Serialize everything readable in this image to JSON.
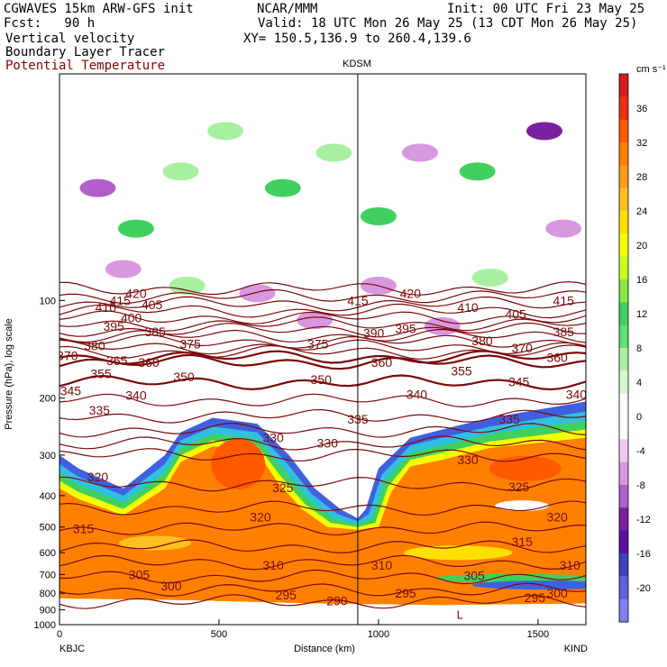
{
  "header": {
    "left1": "CGWAVES 15km ARW-GFS init",
    "center1": "NCAR/MMM",
    "right1": "Init: 00 UTC Fri 23 May 25",
    "left2": "Fcst:   90 h",
    "center2": "Valid: 18 UTC Mon 26 May 25 (13 CDT Mon 26 May 25)",
    "left3": "Vertical velocity",
    "center3": "XY= 150.5,136.9 to 260.4,139.6",
    "left4": "Boundary Layer Tracer",
    "left5": "Potential Temperature"
  },
  "colors": {
    "contour": "#7a0a0a",
    "marker_line": "#000000",
    "header_red": "#8b0000"
  },
  "chart_data": {
    "type": "heatmap",
    "xlabel": "Distance (km)",
    "ylabel": "Pressure (hPa), log scale",
    "x_ticks": [
      0,
      500,
      1000,
      1500
    ],
    "y_ticks": [
      100,
      200,
      300,
      400,
      500,
      600,
      700,
      800,
      900,
      1000
    ],
    "y_scale": "log",
    "xlim": [
      0,
      1650
    ],
    "ylim": [
      1000,
      20
    ],
    "x_endpoints": {
      "left": "KBJC",
      "right": "KIND"
    },
    "marker": {
      "label": "KDSM",
      "x": 935
    },
    "colorbar": {
      "units": "cm s⁻¹",
      "labels": [
        36,
        32,
        28,
        24,
        20,
        16,
        12,
        8,
        4,
        0,
        -4,
        -8,
        -12,
        -16,
        -20
      ],
      "colors": [
        "#d81c1c",
        "#ec3010",
        "#ff5a00",
        "#ff8000",
        "#ff9a1a",
        "#ffc020",
        "#ffe000",
        "#f4ff00",
        "#c8ff20",
        "#88e840",
        "#40d060",
        "#60e070",
        "#a8f0a0",
        "#d8f8d0",
        "#ffffff",
        "#ffffff",
        "#f0c8f0",
        "#d898e0",
        "#b060c8",
        "#7a20a0",
        "#5a10a0",
        "#4040c0",
        "#6060e0",
        "#8080f0"
      ]
    },
    "theta_labels": [
      {
        "v": "420",
        "x": 240,
        "p": 95
      },
      {
        "v": "415",
        "x": 190,
        "p": 100
      },
      {
        "v": "410",
        "x": 145,
        "p": 105
      },
      {
        "v": "405",
        "x": 290,
        "p": 103
      },
      {
        "v": "400",
        "x": 225,
        "p": 113
      },
      {
        "v": "395",
        "x": 170,
        "p": 120
      },
      {
        "v": "385",
        "x": 300,
        "p": 125
      },
      {
        "v": "380",
        "x": 110,
        "p": 138
      },
      {
        "v": "375",
        "x": 410,
        "p": 136
      },
      {
        "v": "370",
        "x": 25,
        "p": 148
      },
      {
        "v": "365",
        "x": 180,
        "p": 153
      },
      {
        "v": "360",
        "x": 280,
        "p": 155
      },
      {
        "v": "355",
        "x": 130,
        "p": 168
      },
      {
        "v": "350",
        "x": 390,
        "p": 172
      },
      {
        "v": "345",
        "x": 35,
        "p": 190
      },
      {
        "v": "340",
        "x": 240,
        "p": 196
      },
      {
        "v": "335",
        "x": 125,
        "p": 218
      },
      {
        "v": "330",
        "x": 670,
        "p": 265
      },
      {
        "v": "325",
        "x": 700,
        "p": 378
      },
      {
        "v": "320",
        "x": 120,
        "p": 350
      },
      {
        "v": "315",
        "x": 75,
        "p": 505
      },
      {
        "v": "310",
        "x": 670,
        "p": 655
      },
      {
        "v": "305",
        "x": 250,
        "p": 700
      },
      {
        "v": "300",
        "x": 350,
        "p": 760
      },
      {
        "v": "295",
        "x": 710,
        "p": 810
      },
      {
        "v": "290",
        "x": 870,
        "p": 845
      },
      {
        "v": "415",
        "x": 935,
        "p": 100
      },
      {
        "v": "420",
        "x": 1100,
        "p": 95
      },
      {
        "v": "410",
        "x": 1280,
        "p": 105
      },
      {
        "v": "405",
        "x": 1430,
        "p": 110
      },
      {
        "v": "415",
        "x": 1580,
        "p": 100
      },
      {
        "v": "395",
        "x": 1085,
        "p": 122
      },
      {
        "v": "390",
        "x": 985,
        "p": 126
      },
      {
        "v": "385",
        "x": 1580,
        "p": 125
      },
      {
        "v": "380",
        "x": 1325,
        "p": 133
      },
      {
        "v": "375",
        "x": 810,
        "p": 136
      },
      {
        "v": "370",
        "x": 1450,
        "p": 140
      },
      {
        "v": "360",
        "x": 1010,
        "p": 155
      },
      {
        "v": "355",
        "x": 1260,
        "p": 165
      },
      {
        "v": "345",
        "x": 1440,
        "p": 178
      },
      {
        "v": "340",
        "x": 1120,
        "p": 195
      },
      {
        "v": "340",
        "x": 1620,
        "p": 195
      },
      {
        "v": "335",
        "x": 935,
        "p": 232
      },
      {
        "v": "335",
        "x": 1410,
        "p": 232
      },
      {
        "v": "350",
        "x": 820,
        "p": 175
      },
      {
        "v": "330",
        "x": 840,
        "p": 275
      },
      {
        "v": "330",
        "x": 1280,
        "p": 310
      },
      {
        "v": "325",
        "x": 1440,
        "p": 375
      },
      {
        "v": "320",
        "x": 630,
        "p": 465
      },
      {
        "v": "320",
        "x": 1560,
        "p": 465
      },
      {
        "v": "315",
        "x": 1450,
        "p": 555
      },
      {
        "v": "310",
        "x": 1010,
        "p": 655
      },
      {
        "v": "310",
        "x": 1600,
        "p": 655
      },
      {
        "v": "305",
        "x": 1300,
        "p": 705
      },
      {
        "v": "300",
        "x": 1560,
        "p": 800
      },
      {
        "v": "295",
        "x": 1490,
        "p": 825
      },
      {
        "v": "295",
        "x": 1085,
        "p": 800
      },
      {
        "v": "360",
        "x": 1560,
        "p": 150
      }
    ],
    "marker_glyph": "L"
  }
}
